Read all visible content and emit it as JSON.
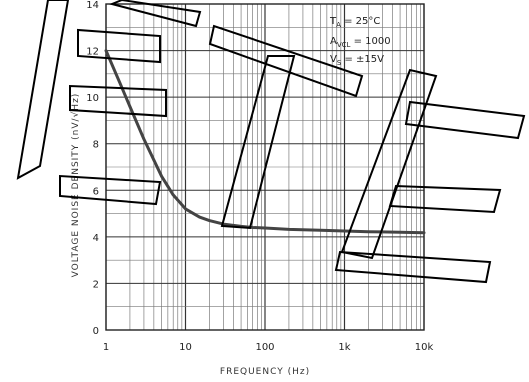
{
  "chart_data": {
    "type": "line",
    "title": "",
    "xlabel": "FREQUENCY (Hz)",
    "ylabel": "VOLTAGE NOISE DENSITY (nV/√Hz)",
    "x_scale": "log",
    "xlim": [
      1,
      10000
    ],
    "ylim": [
      0,
      14
    ],
    "x_tick_labels": [
      "1",
      "10",
      "100",
      "1k",
      "10k"
    ],
    "x_tick_values": [
      1,
      10,
      100,
      1000,
      10000
    ],
    "y_ticks": [
      0,
      2,
      4,
      6,
      8,
      10,
      12,
      14
    ],
    "grid": true,
    "annotations": {
      "temp_main": "T",
      "temp_sub": "A",
      "temp_rest": " = 25°C",
      "gain_main": "A",
      "gain_sub": "VCL",
      "gain_rest": " = 1000",
      "supply_main": "V",
      "supply_sub": "S",
      "supply_rest": " = ±15V"
    },
    "series": [
      {
        "x": [
          1,
          1.5,
          2,
          3,
          5,
          7,
          10,
          15,
          20,
          30,
          50,
          70,
          100,
          200,
          500,
          1000,
          2000,
          5000,
          10000
        ],
        "y": [
          12.0,
          10.6,
          9.6,
          8.2,
          6.6,
          5.8,
          5.2,
          4.85,
          4.7,
          4.55,
          4.45,
          4.4,
          4.38,
          4.32,
          4.28,
          4.25,
          4.22,
          4.2,
          4.18
        ],
        "color": "#444444"
      }
    ]
  }
}
